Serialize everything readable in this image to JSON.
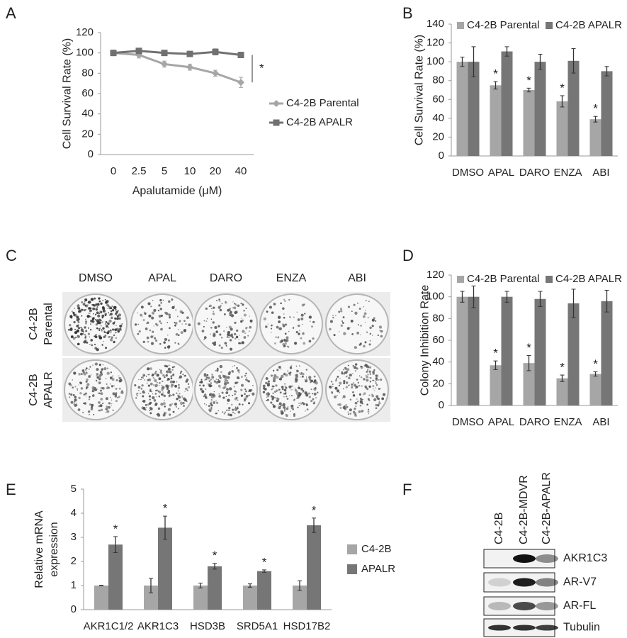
{
  "panel_labels": [
    "A",
    "B",
    "C",
    "D",
    "E",
    "F"
  ],
  "chart_data": [
    {
      "type": "line",
      "xlabel": "Apalutamide (μM)",
      "ylabel": "Cell Survival Rate (%)",
      "categories": [
        "0",
        "2.5",
        "5",
        "10",
        "20",
        "40"
      ],
      "ylim": [
        0,
        120
      ],
      "yticks": [
        0,
        20,
        40,
        60,
        80,
        100,
        120
      ],
      "legend": "right",
      "annotation": "*",
      "series": [
        {
          "name": "C4-2B Parental",
          "color": "#a6a6a6",
          "marker": "diamond",
          "values": [
            100,
            98,
            89,
            86,
            80,
            71
          ],
          "errors": [
            2,
            3,
            3,
            3,
            3,
            5
          ]
        },
        {
          "name": "C4-2B APALR",
          "color": "#707070",
          "marker": "square",
          "values": [
            100,
            102,
            100,
            99,
            101,
            98
          ],
          "errors": [
            2,
            1,
            2,
            2,
            3,
            2
          ]
        }
      ]
    },
    {
      "type": "bar",
      "ylabel": "Cell Survival Rate (%)",
      "categories": [
        "DMSO",
        "APAL",
        "DARO",
        "ENZA",
        "ABI"
      ],
      "ylim": [
        0,
        140
      ],
      "yticks": [
        0,
        20,
        40,
        60,
        80,
        100,
        120,
        140
      ],
      "legend": "top",
      "series": [
        {
          "name": "C4-2B Parental",
          "color": "#a6a6a6",
          "values": [
            100,
            75,
            70,
            58,
            39
          ],
          "errors": [
            5,
            4,
            2,
            6,
            3
          ],
          "labels": [
            null,
            "*",
            "*",
            "*",
            "*"
          ]
        },
        {
          "name": "C4-2B APALR",
          "color": "#767676",
          "values": [
            100,
            111,
            100,
            101,
            90
          ],
          "errors": [
            16,
            5,
            8,
            13,
            5
          ]
        }
      ]
    },
    {
      "type": "bar",
      "ylabel": "Colony Inhibition Rate",
      "categories": [
        "DMSO",
        "APAL",
        "DARO",
        "ENZA",
        "ABI"
      ],
      "ylim": [
        0,
        120
      ],
      "yticks": [
        0,
        20,
        40,
        60,
        80,
        100,
        120
      ],
      "legend": "top",
      "series": [
        {
          "name": "C4-2B Parental",
          "color": "#a6a6a6",
          "values": [
            100,
            37,
            39,
            25,
            29
          ],
          "errors": [
            5,
            4,
            7,
            3,
            2
          ],
          "labels": [
            null,
            "*",
            "*",
            "*",
            "*"
          ]
        },
        {
          "name": "C4-2B APALR",
          "color": "#767676",
          "values": [
            100,
            100,
            98,
            94,
            96
          ],
          "errors": [
            10,
            5,
            7,
            13,
            10
          ]
        }
      ]
    },
    {
      "type": "bar",
      "ylabel": "Relative mRNA expression",
      "categories": [
        "AKR1C1/2",
        "AKR1C3",
        "HSD3B",
        "SRD5A1",
        "HSD17B2"
      ],
      "ylim": [
        0,
        5
      ],
      "yticks": [
        0,
        1,
        2,
        3,
        4,
        5
      ],
      "legend": "right",
      "series": [
        {
          "name": "C4-2B",
          "color": "#a6a6a6",
          "values": [
            1,
            1,
            1,
            1,
            1
          ],
          "errors": [
            0.01,
            0.3,
            0.1,
            0.07,
            0.2
          ]
        },
        {
          "name": "APALR",
          "color": "#767676",
          "values": [
            2.7,
            3.4,
            1.8,
            1.6,
            3.5
          ],
          "errors": [
            0.33,
            0.48,
            0.12,
            0.05,
            0.3
          ],
          "labels": [
            "*",
            "*",
            "*",
            "*",
            "*"
          ]
        }
      ]
    }
  ],
  "colony_assay": {
    "columns": [
      "DMSO",
      "APAL",
      "DARO",
      "ENZA",
      "ABI"
    ],
    "rows": [
      "C4-2B Parental",
      "C4-2B APALR"
    ]
  },
  "western_blot": {
    "lanes": [
      "C4-2B",
      "C4-2B-MDVR",
      "C4-2B-APALR"
    ],
    "proteins": [
      "AKR1C3",
      "AR-V7",
      "AR-FL",
      "Tubulin"
    ]
  }
}
